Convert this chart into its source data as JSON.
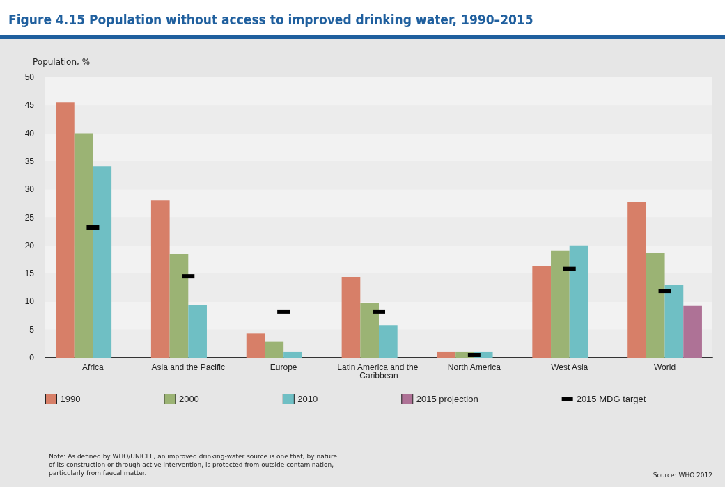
{
  "chart_data": {
    "type": "bar",
    "title": "Figure 4.15 Population without access to improved drinking water, 1990–2015",
    "ylabel": "Population, %",
    "categories": [
      "Africa",
      "Asia and the Pacific",
      "Europe",
      "Latin America and the Caribbean",
      "North America",
      "West Asia",
      "World"
    ],
    "series": [
      {
        "name": "1990",
        "color": "#d77f68",
        "values": [
          45.5,
          28,
          4.3,
          14.4,
          1,
          16.3,
          27.7
        ]
      },
      {
        "name": "2000",
        "color": "#9bb374",
        "values": [
          40,
          18.5,
          2.9,
          9.7,
          1,
          19,
          18.7
        ]
      },
      {
        "name": "2010",
        "color": "#6fbfc4",
        "values": [
          34.1,
          9.3,
          1,
          5.8,
          1,
          20,
          12.9
        ]
      },
      {
        "name": "2015 projection",
        "color": "#ae7296",
        "values": [
          null,
          null,
          null,
          null,
          null,
          null,
          9.2
        ]
      },
      {
        "name": "2015 MDG target",
        "color": "#000000",
        "type": "scatter",
        "x": [
          "Africa",
          "Asia and the Pacific",
          "Europe",
          "Latin America and the Caribbean",
          "North America",
          "West Asia",
          "World"
        ],
        "values": [
          23.2,
          14.5,
          8.2,
          8.2,
          0.5,
          15.8,
          11.9
        ]
      }
    ],
    "ylim": [
      0,
      50
    ],
    "yticks": [
      0,
      5,
      10,
      15,
      20,
      25,
      30,
      35,
      40,
      45,
      50
    ],
    "legend": "bottom",
    "annotations": [
      "Note: As defined by WHO/UNICEF, an improved drinking-water source is one that, by nature of its construction or through active intervention, is protected from outside contamination, particularly from faecal matter.",
      "Source: WHO 2012"
    ]
  }
}
